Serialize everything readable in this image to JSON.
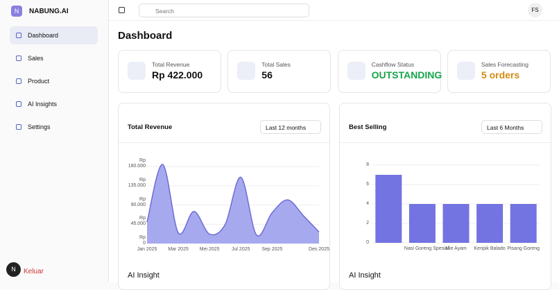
{
  "app": {
    "name": "NABUNG.AI",
    "logo": "N"
  },
  "nav": [
    "Dashboard",
    "Sales",
    "Product",
    "AI Insights",
    "Settings"
  ],
  "logout": {
    "avatar": "N",
    "label": "Keluar"
  },
  "search": "Search",
  "user": "FS",
  "page_title": "Dashboard",
  "cards": [
    {
      "label": "Total Revenue",
      "value": "Rp 422.000"
    },
    {
      "label": "Total Sales",
      "value": "56"
    },
    {
      "label": "Cashflow Status",
      "value": "OUTSTANDING"
    },
    {
      "label": "Sales Forecasting",
      "value": "5 orders"
    }
  ],
  "panels": [
    {
      "title": "Total Revenue",
      "filter": "Last 12 months",
      "insight": "AI Insight"
    },
    {
      "title": "Best Selling",
      "filter": "Last 6 Months",
      "insight": "AI Insight"
    }
  ],
  "chart_data": [
    {
      "type": "area",
      "categories": [
        "Jan 2025",
        null,
        "Mar 2025",
        null,
        "Mei 2025",
        null,
        "Jul 2025",
        null,
        "Sep 2025",
        null,
        null,
        "Des 2025"
      ],
      "values": [
        50000,
        185000,
        25000,
        75000,
        22000,
        45000,
        155000,
        20000,
        72000,
        102000,
        65000,
        27000
      ],
      "color": "#a7a9ee",
      "line_color": "#6c6cd6",
      "ylim": [
        0,
        180000
      ],
      "yticks": [
        {
          "value": 0,
          "label": "Rp 0"
        },
        {
          "value": 45000,
          "label": "Rp 45.000"
        },
        {
          "value": 90000,
          "label": "Rp 90.000"
        },
        {
          "value": 135000,
          "label": "Rp 135.000"
        },
        {
          "value": 180000,
          "label": "Rp 180.000"
        }
      ],
      "grid": true
    },
    {
      "type": "bar",
      "categories": [
        null,
        "Nasi Goreng Spesial",
        "Mie Ayam",
        "Keripik Balado",
        "Pisang Goreng"
      ],
      "values": [
        7,
        4,
        4,
        4,
        4
      ],
      "color": "#7373e1",
      "ylim": [
        0,
        8
      ],
      "yticks": [
        0,
        2,
        4,
        6,
        8
      ],
      "grid": true
    }
  ]
}
